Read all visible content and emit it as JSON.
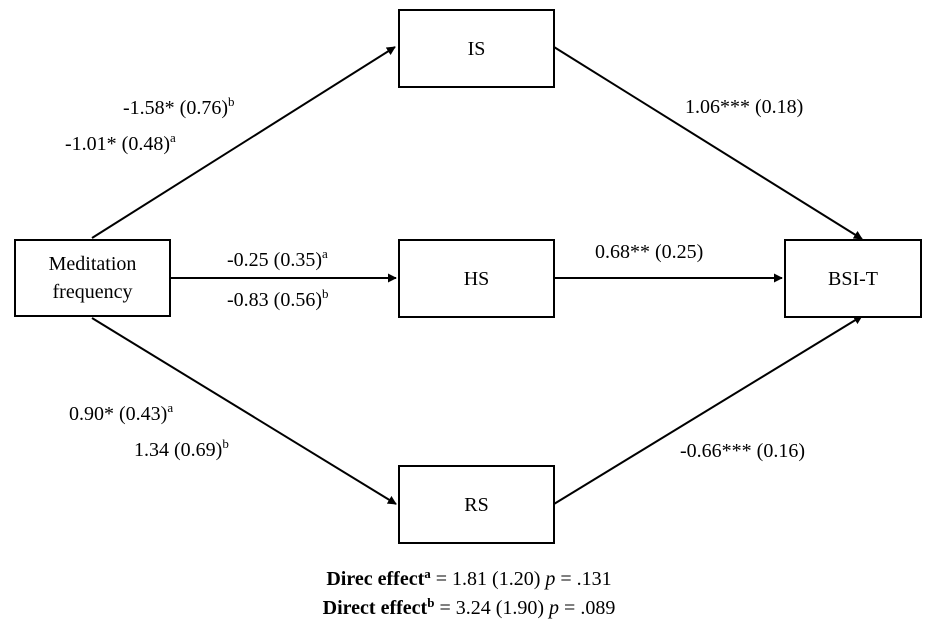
{
  "nodes": {
    "predictor": {
      "line1": "Meditation",
      "line2": "frequency"
    },
    "is": {
      "label": "IS"
    },
    "hs": {
      "label": "HS"
    },
    "rs": {
      "label": "RS"
    },
    "outcome": {
      "label": "BSI-T"
    }
  },
  "paths": {
    "to_is": [
      {
        "value": "-1.58* (0.76)",
        "sup": "b"
      },
      {
        "value": "-1.01* (0.48)",
        "sup": "a"
      }
    ],
    "to_hs": [
      {
        "value": "-0.25 (0.35)",
        "sup": "a"
      },
      {
        "value": "-0.83 (0.56)",
        "sup": "b"
      }
    ],
    "to_rs": [
      {
        "value": "0.90* (0.43)",
        "sup": "a"
      },
      {
        "value": "1.34 (0.69)",
        "sup": "b"
      }
    ],
    "is_to_outcome": {
      "value": "1.06*** (0.18)"
    },
    "hs_to_outcome": {
      "value": "0.68** (0.25)"
    },
    "rs_to_outcome": {
      "value": "-0.66*** (0.16)"
    }
  },
  "direct_effects": [
    {
      "label": "Direc effect",
      "sup": "a",
      "equals": " = 1.81 (1.20) ",
      "p_symbol": "p",
      "p_value": " = .131"
    },
    {
      "label": "Direct effect",
      "sup": "b",
      "equals": " = 3.24 (1.90) ",
      "p_symbol": "p",
      "p_value": " = .089"
    }
  ],
  "style": {
    "line_color": "#000000",
    "box_border_color": "#000000",
    "background": "#ffffff"
  }
}
